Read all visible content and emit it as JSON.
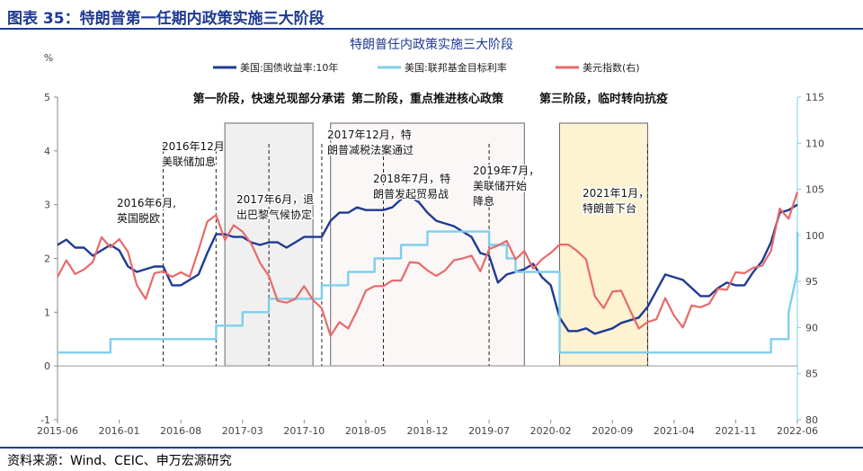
{
  "figure_title": "图表 35：特朗普第一任期内政策实施三大阶段",
  "source_note": "资料来源：Wind、CEIC、申万宏源研究",
  "chart_data": {
    "type": "line",
    "title": "特朗普任内政策实施三大阶段",
    "left_unit": "%",
    "left_axis": {
      "min": -1,
      "max": 5,
      "ticks": [
        -1,
        0,
        1,
        2,
        3,
        4,
        5
      ]
    },
    "right_axis": {
      "min": 80,
      "max": 115,
      "ticks": [
        80,
        85,
        90,
        95,
        100,
        105,
        110,
        115
      ]
    },
    "x_tick_labels": [
      "2015-06",
      "2016-01",
      "2016-08",
      "2017-03",
      "2017-10",
      "2018-05",
      "2018-12",
      "2019-07",
      "2020-02",
      "2020-09",
      "2021-04",
      "2021-11",
      "2022-06"
    ],
    "x_range": [
      "2015-06",
      "2022-06"
    ],
    "legend": [
      {
        "name": "美国:国债收益率:10年",
        "color": "#1f3a93"
      },
      {
        "name": "美国:联邦基金目标利率",
        "color": "#7ecfee"
      },
      {
        "name": "美元指数(右)",
        "color": "#e86a6a"
      }
    ],
    "phases": [
      {
        "label": "第一阶段，快速兑现部分承诺",
        "start": "2017-01",
        "end": "2017-11",
        "fill": "#f0f0f0"
      },
      {
        "label": "第二阶段，重点推进核心政策",
        "start": "2018-01",
        "end": "2019-11",
        "fill": "#fbf7f6"
      },
      {
        "label": "第三阶段，临时转向抗疫",
        "start": "2020-03",
        "end": "2021-01",
        "fill": "#fdf2d2"
      }
    ],
    "events": [
      {
        "date": "2016-06",
        "line1": "2016年6月,",
        "line2": "英国脱欧"
      },
      {
        "date": "2016-12",
        "line1": "2016年12月",
        "line2": "美联储加息"
      },
      {
        "date": "2017-06",
        "line1": "2017年6月，退",
        "line2": "出巴黎气候协定"
      },
      {
        "date": "2017-12",
        "line1": "2017年12月，特",
        "line2": "朗普减税法案通过"
      },
      {
        "date": "2018-07",
        "line1": "2018年7月，特",
        "line2": "朗普发起贸易战"
      },
      {
        "date": "2019-07",
        "line1": "2019年7月，",
        "line2": "美联储开始",
        "line3": "降息"
      },
      {
        "date": "2021-01",
        "line1": "2021年1月，",
        "line2": "特朗普下台"
      }
    ],
    "series": [
      {
        "name": "美国:国债收益率:10年",
        "axis": "left",
        "color": "#1f3a93",
        "points": [
          [
            "2015-06",
            2.25
          ],
          [
            "2015-07",
            2.35
          ],
          [
            "2015-08",
            2.2
          ],
          [
            "2015-09",
            2.2
          ],
          [
            "2015-10",
            2.05
          ],
          [
            "2015-11",
            2.15
          ],
          [
            "2015-12",
            2.25
          ],
          [
            "2016-01",
            2.15
          ],
          [
            "2016-02",
            1.85
          ],
          [
            "2016-03",
            1.75
          ],
          [
            "2016-04",
            1.8
          ],
          [
            "2016-05",
            1.85
          ],
          [
            "2016-06",
            1.85
          ],
          [
            "2016-07",
            1.5
          ],
          [
            "2016-08",
            1.5
          ],
          [
            "2016-09",
            1.6
          ],
          [
            "2016-10",
            1.7
          ],
          [
            "2016-11",
            2.1
          ],
          [
            "2016-12",
            2.45
          ],
          [
            "2017-01",
            2.45
          ],
          [
            "2017-02",
            2.4
          ],
          [
            "2017-03",
            2.4
          ],
          [
            "2017-04",
            2.3
          ],
          [
            "2017-05",
            2.25
          ],
          [
            "2017-06",
            2.3
          ],
          [
            "2017-07",
            2.3
          ],
          [
            "2017-08",
            2.2
          ],
          [
            "2017-09",
            2.3
          ],
          [
            "2017-10",
            2.4
          ],
          [
            "2017-11",
            2.4
          ],
          [
            "2017-12",
            2.4
          ],
          [
            "2018-01",
            2.7
          ],
          [
            "2018-02",
            2.85
          ],
          [
            "2018-03",
            2.85
          ],
          [
            "2018-04",
            2.95
          ],
          [
            "2018-05",
            2.9
          ],
          [
            "2018-06",
            2.9
          ],
          [
            "2018-07",
            2.9
          ],
          [
            "2018-08",
            2.95
          ],
          [
            "2018-09",
            3.1
          ],
          [
            "2018-10",
            3.15
          ],
          [
            "2018-11",
            3.05
          ],
          [
            "2018-12",
            2.85
          ],
          [
            "2019-01",
            2.7
          ],
          [
            "2019-02",
            2.65
          ],
          [
            "2019-03",
            2.6
          ],
          [
            "2019-04",
            2.5
          ],
          [
            "2019-05",
            2.4
          ],
          [
            "2019-06",
            2.1
          ],
          [
            "2019-07",
            2.05
          ],
          [
            "2019-08",
            1.55
          ],
          [
            "2019-09",
            1.7
          ],
          [
            "2019-10",
            1.75
          ],
          [
            "2019-11",
            1.8
          ],
          [
            "2019-12",
            1.9
          ],
          [
            "2020-01",
            1.65
          ],
          [
            "2020-02",
            1.5
          ],
          [
            "2020-03",
            0.9
          ],
          [
            "2020-04",
            0.65
          ],
          [
            "2020-05",
            0.65
          ],
          [
            "2020-06",
            0.7
          ],
          [
            "2020-07",
            0.6
          ],
          [
            "2020-08",
            0.65
          ],
          [
            "2020-09",
            0.7
          ],
          [
            "2020-10",
            0.8
          ],
          [
            "2020-11",
            0.85
          ],
          [
            "2020-12",
            0.9
          ],
          [
            "2021-01",
            1.1
          ],
          [
            "2021-02",
            1.4
          ],
          [
            "2021-03",
            1.7
          ],
          [
            "2021-04",
            1.65
          ],
          [
            "2021-05",
            1.6
          ],
          [
            "2021-06",
            1.45
          ],
          [
            "2021-07",
            1.3
          ],
          [
            "2021-08",
            1.3
          ],
          [
            "2021-09",
            1.45
          ],
          [
            "2021-10",
            1.55
          ],
          [
            "2021-11",
            1.5
          ],
          [
            "2021-12",
            1.5
          ],
          [
            "2022-01",
            1.75
          ],
          [
            "2022-02",
            1.95
          ],
          [
            "2022-03",
            2.3
          ],
          [
            "2022-04",
            2.85
          ],
          [
            "2022-05",
            2.9
          ],
          [
            "2022-06",
            3.0
          ]
        ]
      },
      {
        "name": "美国:联邦基金目标利率",
        "axis": "left",
        "color": "#7ecfee",
        "points": [
          [
            "2015-06",
            0.25
          ],
          [
            "2015-12",
            0.25
          ],
          [
            "2015-12",
            0.5
          ],
          [
            "2016-12",
            0.5
          ],
          [
            "2016-12",
            0.75
          ],
          [
            "2017-03",
            0.75
          ],
          [
            "2017-03",
            1.0
          ],
          [
            "2017-06",
            1.0
          ],
          [
            "2017-06",
            1.25
          ],
          [
            "2017-12",
            1.25
          ],
          [
            "2017-12",
            1.5
          ],
          [
            "2018-03",
            1.5
          ],
          [
            "2018-03",
            1.75
          ],
          [
            "2018-06",
            1.75
          ],
          [
            "2018-06",
            2.0
          ],
          [
            "2018-09",
            2.0
          ],
          [
            "2018-09",
            2.25
          ],
          [
            "2018-12",
            2.25
          ],
          [
            "2018-12",
            2.5
          ],
          [
            "2019-07",
            2.5
          ],
          [
            "2019-07",
            2.25
          ],
          [
            "2019-09",
            2.25
          ],
          [
            "2019-09",
            2.0
          ],
          [
            "2019-10",
            2.0
          ],
          [
            "2019-10",
            1.75
          ],
          [
            "2020-03",
            1.75
          ],
          [
            "2020-03",
            0.25
          ],
          [
            "2022-03",
            0.25
          ],
          [
            "2022-03",
            0.5
          ],
          [
            "2022-05",
            0.5
          ],
          [
            "2022-05",
            1.0
          ],
          [
            "2022-06",
            1.75
          ],
          [
            "2022-06",
            2.5
          ]
        ]
      },
      {
        "name": "美元指数(右)",
        "axis": "right",
        "color": "#e86a6a",
        "points": [
          [
            "2015-06",
            95.5
          ],
          [
            "2015-07",
            97.3
          ],
          [
            "2015-08",
            95.8
          ],
          [
            "2015-09",
            96.3
          ],
          [
            "2015-10",
            97.1
          ],
          [
            "2015-11",
            99.8
          ],
          [
            "2015-12",
            98.7
          ],
          [
            "2016-01",
            99.6
          ],
          [
            "2016-02",
            98.2
          ],
          [
            "2016-03",
            94.6
          ],
          [
            "2016-04",
            93.1
          ],
          [
            "2016-05",
            95.9
          ],
          [
            "2016-06",
            96.1
          ],
          [
            "2016-07",
            95.5
          ],
          [
            "2016-08",
            96.0
          ],
          [
            "2016-09",
            95.5
          ],
          [
            "2016-10",
            98.4
          ],
          [
            "2016-11",
            101.5
          ],
          [
            "2016-12",
            102.2
          ],
          [
            "2017-01",
            99.5
          ],
          [
            "2017-02",
            101.1
          ],
          [
            "2017-03",
            100.4
          ],
          [
            "2017-04",
            99.1
          ],
          [
            "2017-05",
            97.0
          ],
          [
            "2017-06",
            95.6
          ],
          [
            "2017-07",
            92.9
          ],
          [
            "2017-08",
            92.7
          ],
          [
            "2017-09",
            93.1
          ],
          [
            "2017-10",
            94.5
          ],
          [
            "2017-11",
            93.0
          ],
          [
            "2017-12",
            92.1
          ],
          [
            "2018-01",
            89.1
          ],
          [
            "2018-02",
            90.6
          ],
          [
            "2018-03",
            89.9
          ],
          [
            "2018-04",
            91.8
          ],
          [
            "2018-05",
            94.0
          ],
          [
            "2018-06",
            94.5
          ],
          [
            "2018-07",
            94.5
          ],
          [
            "2018-08",
            95.1
          ],
          [
            "2018-09",
            95.1
          ],
          [
            "2018-10",
            97.1
          ],
          [
            "2018-11",
            97.0
          ],
          [
            "2018-12",
            96.2
          ],
          [
            "2019-01",
            95.6
          ],
          [
            "2019-02",
            96.2
          ],
          [
            "2019-03",
            97.3
          ],
          [
            "2019-04",
            97.5
          ],
          [
            "2019-05",
            97.8
          ],
          [
            "2019-06",
            96.1
          ],
          [
            "2019-07",
            98.5
          ],
          [
            "2019-08",
            98.9
          ],
          [
            "2019-09",
            99.4
          ],
          [
            "2019-10",
            97.4
          ],
          [
            "2019-11",
            98.3
          ],
          [
            "2019-12",
            96.4
          ],
          [
            "2020-01",
            97.4
          ],
          [
            "2020-02",
            98.1
          ],
          [
            "2020-03",
            99.0
          ],
          [
            "2020-04",
            99.0
          ],
          [
            "2020-05",
            98.3
          ],
          [
            "2020-06",
            97.4
          ],
          [
            "2020-07",
            93.4
          ],
          [
            "2020-08",
            92.1
          ],
          [
            "2020-09",
            93.9
          ],
          [
            "2020-10",
            94.0
          ],
          [
            "2020-11",
            91.9
          ],
          [
            "2020-12",
            89.9
          ],
          [
            "2021-01",
            90.6
          ],
          [
            "2021-02",
            90.9
          ],
          [
            "2021-03",
            93.2
          ],
          [
            "2021-04",
            91.3
          ],
          [
            "2021-05",
            90.0
          ],
          [
            "2021-06",
            92.4
          ],
          [
            "2021-07",
            92.2
          ],
          [
            "2021-08",
            92.6
          ],
          [
            "2021-09",
            94.2
          ],
          [
            "2021-10",
            94.1
          ],
          [
            "2021-11",
            96.0
          ],
          [
            "2021-12",
            95.9
          ],
          [
            "2022-01",
            96.5
          ],
          [
            "2022-02",
            96.7
          ],
          [
            "2022-03",
            98.3
          ],
          [
            "2022-04",
            102.9
          ],
          [
            "2022-05",
            101.8
          ],
          [
            "2022-06",
            104.7
          ]
        ]
      }
    ]
  }
}
